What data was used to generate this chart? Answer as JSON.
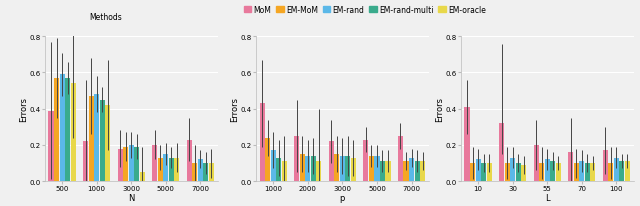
{
  "legend_labels": [
    "MoM",
    "EM-MoM",
    "EM-rand",
    "EM-rand-multi",
    "EM-oracle"
  ],
  "colors": [
    "#E8799C",
    "#F5A623",
    "#5BB8E8",
    "#3AAB8C",
    "#E8D84A"
  ],
  "panel1": {
    "xlabel": "N",
    "ylabel": "Errors",
    "xtick_labels": [
      "500",
      "1000",
      "3000",
      "5000",
      "7000"
    ],
    "ylim": [
      0,
      0.8
    ],
    "yticks": [
      0.0,
      0.2,
      0.4,
      0.6,
      0.8
    ],
    "bar_values": [
      [
        0.39,
        0.57,
        0.59,
        0.57,
        0.54
      ],
      [
        0.22,
        0.47,
        0.48,
        0.45,
        0.42
      ],
      [
        0.18,
        0.19,
        0.2,
        0.19,
        0.05
      ],
      [
        0.2,
        0.13,
        0.15,
        0.13,
        0.13
      ],
      [
        0.23,
        0.1,
        0.12,
        0.1,
        0.1
      ]
    ],
    "err_lo": [
      [
        0.38,
        0.22,
        0.12,
        0.09,
        0.3
      ],
      [
        0.34,
        0.21,
        0.1,
        0.07,
        0.25
      ],
      [
        0.1,
        0.08,
        0.07,
        0.07,
        0.05
      ],
      [
        0.08,
        0.07,
        0.06,
        0.06,
        0.08
      ],
      [
        0.12,
        0.1,
        0.05,
        0.06,
        0.08
      ]
    ],
    "err_hi": [
      [
        0.38,
        0.22,
        0.12,
        0.09,
        0.3
      ],
      [
        0.34,
        0.21,
        0.1,
        0.07,
        0.25
      ],
      [
        0.1,
        0.08,
        0.07,
        0.07,
        0.14
      ],
      [
        0.08,
        0.07,
        0.06,
        0.06,
        0.08
      ],
      [
        0.12,
        0.1,
        0.05,
        0.06,
        0.08
      ]
    ]
  },
  "panel2": {
    "xlabel": "p",
    "ylabel": "Errors",
    "xtick_labels": [
      "1000",
      "2000",
      "3000",
      "5000",
      "7000"
    ],
    "ylim": [
      0,
      0.8
    ],
    "yticks": [
      0.0,
      0.2,
      0.4,
      0.6,
      0.8
    ],
    "bar_values": [
      [
        0.43,
        0.24,
        0.17,
        0.13,
        0.11
      ],
      [
        0.25,
        0.15,
        0.14,
        0.14,
        0.11
      ],
      [
        0.22,
        0.15,
        0.14,
        0.14,
        0.13
      ],
      [
        0.23,
        0.14,
        0.14,
        0.11,
        0.11
      ],
      [
        0.25,
        0.11,
        0.13,
        0.11,
        0.11
      ]
    ],
    "err_lo": [
      [
        0.24,
        0.1,
        0.1,
        0.1,
        0.14
      ],
      [
        0.2,
        0.1,
        0.09,
        0.1,
        0.29
      ],
      [
        0.12,
        0.1,
        0.1,
        0.11,
        0.1
      ],
      [
        0.07,
        0.06,
        0.06,
        0.06,
        0.06
      ],
      [
        0.07,
        0.05,
        0.05,
        0.06,
        0.05
      ]
    ],
    "err_hi": [
      [
        0.24,
        0.1,
        0.1,
        0.1,
        0.14
      ],
      [
        0.2,
        0.1,
        0.09,
        0.1,
        0.29
      ],
      [
        0.12,
        0.1,
        0.1,
        0.11,
        0.1
      ],
      [
        0.07,
        0.06,
        0.06,
        0.06,
        0.06
      ],
      [
        0.07,
        0.05,
        0.05,
        0.06,
        0.05
      ]
    ]
  },
  "panel3": {
    "xlabel": "L",
    "ylabel": "Errors",
    "xtick_labels": [
      "10",
      "30",
      "55",
      "70",
      "100"
    ],
    "ylim": [
      0,
      0.8
    ],
    "yticks": [
      0.0,
      0.2,
      0.4,
      0.6,
      0.8
    ],
    "bar_values": [
      [
        0.41,
        0.1,
        0.12,
        0.1,
        0.1
      ],
      [
        0.32,
        0.1,
        0.13,
        0.1,
        0.09
      ],
      [
        0.2,
        0.1,
        0.12,
        0.11,
        0.1
      ],
      [
        0.16,
        0.1,
        0.11,
        0.1,
        0.1
      ],
      [
        0.17,
        0.1,
        0.13,
        0.11,
        0.11
      ]
    ],
    "err_lo": [
      [
        0.15,
        0.09,
        0.06,
        0.05,
        0.05
      ],
      [
        0.17,
        0.09,
        0.06,
        0.05,
        0.05
      ],
      [
        0.14,
        0.09,
        0.06,
        0.05,
        0.04
      ],
      [
        0.19,
        0.08,
        0.06,
        0.05,
        0.04
      ],
      [
        0.13,
        0.09,
        0.06,
        0.04,
        0.04
      ]
    ],
    "err_hi": [
      [
        0.15,
        0.09,
        0.06,
        0.05,
        0.05
      ],
      [
        0.44,
        0.09,
        0.06,
        0.05,
        0.05
      ],
      [
        0.14,
        0.09,
        0.06,
        0.05,
        0.04
      ],
      [
        0.19,
        0.08,
        0.06,
        0.05,
        0.04
      ],
      [
        0.13,
        0.09,
        0.06,
        0.04,
        0.04
      ]
    ]
  },
  "bg_color": "#f0f0f0",
  "grid_color": "white",
  "bar_width": 0.16
}
